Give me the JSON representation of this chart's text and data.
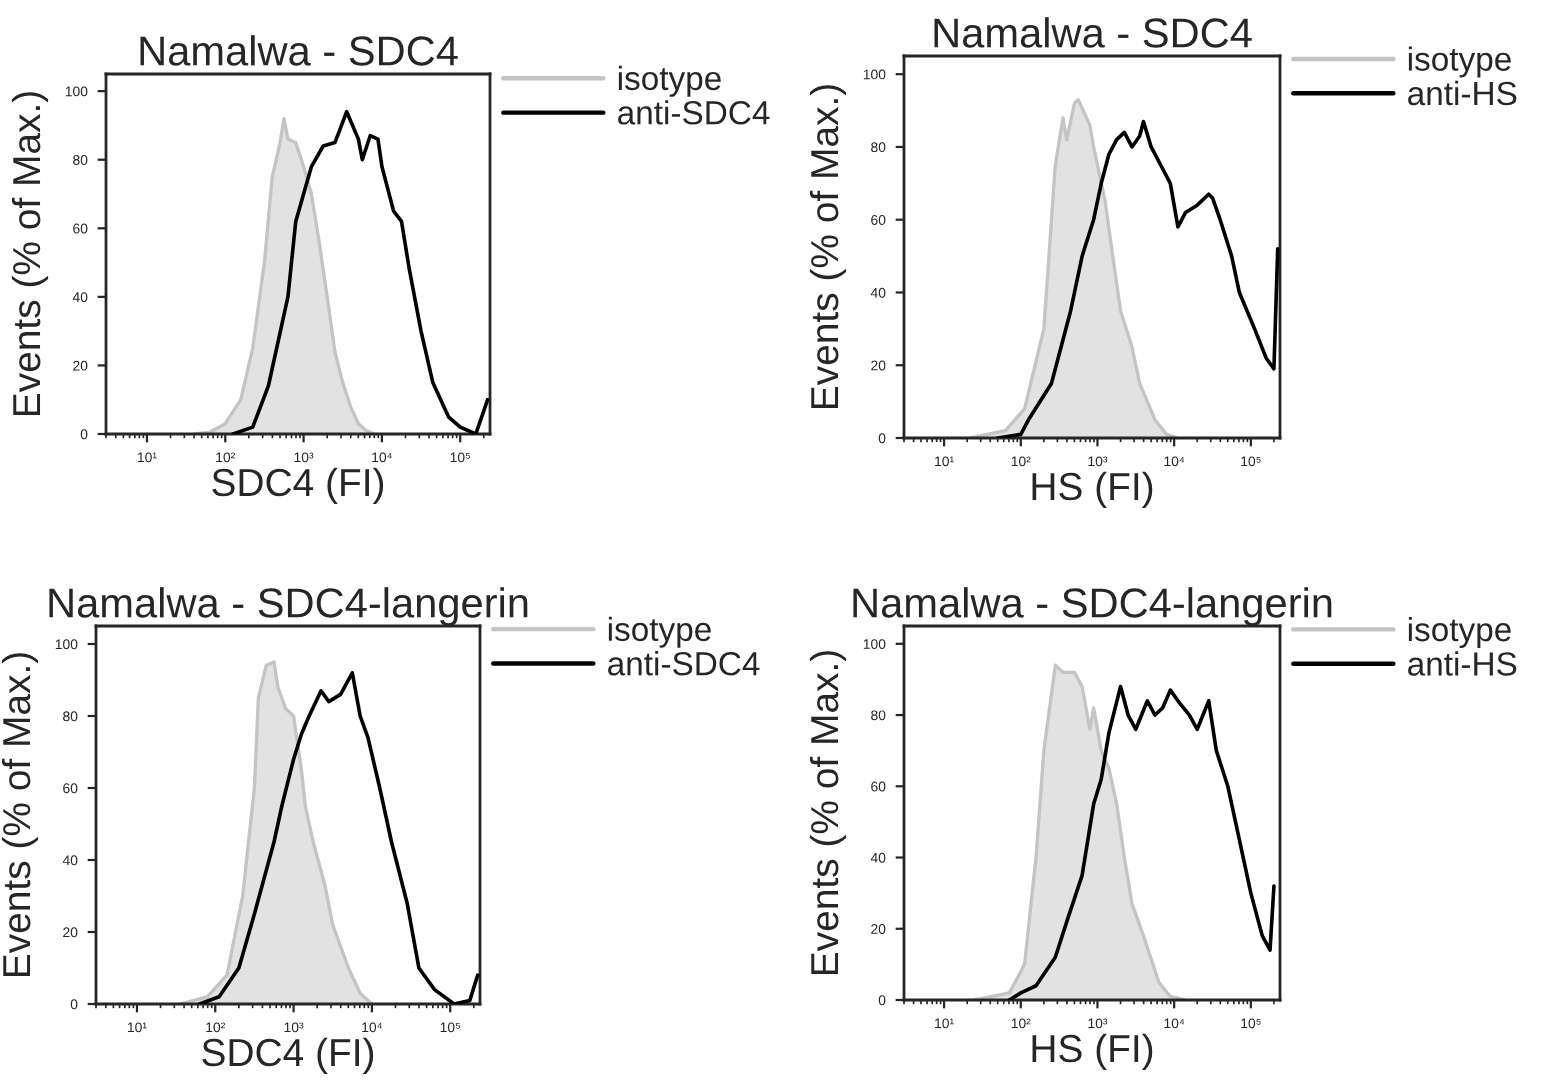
{
  "chart_data": [
    {
      "type": "area",
      "title": "Namalwa - SDC4",
      "xlabel": "SDC4 (FI)",
      "ylabel": "Events (% of Max.)",
      "log": "x",
      "xlim": [
        3,
        240000
      ],
      "ylim": [
        0,
        105
      ],
      "xticks": [
        {
          "value": 10,
          "label": "10¹"
        },
        {
          "value": 100,
          "label": "10²"
        },
        {
          "value": 1000,
          "label": "10³"
        },
        {
          "value": 10000,
          "label": "10⁴"
        },
        {
          "value": 100000,
          "label": "10⁵"
        }
      ],
      "yticks": [
        0,
        20,
        40,
        60,
        80,
        100
      ],
      "legend": "right",
      "grid": false,
      "series": [
        {
          "name": "isotype",
          "color": "#c4c4c4",
          "x": [
            40,
            63,
            100,
            158,
            224,
            316,
            398,
            447,
            501,
            562,
            631,
            794,
            1000,
            1260,
            1580,
            2000,
            2510,
            3160,
            3980,
            5010,
            6310,
            7940
          ],
          "values": [
            0,
            0.5,
            3,
            10,
            25,
            50,
            75,
            80,
            85,
            92,
            86,
            85,
            78,
            70,
            56,
            40,
            24,
            15,
            8,
            3,
            1,
            0
          ]
        },
        {
          "name": "anti-SDC4",
          "type": "line",
          "color": "#000000",
          "x": [
            126,
            224,
            355,
            631,
            794,
            1000,
            1260,
            1780,
            2510,
            2820,
            3550,
            5010,
            5620,
            7080,
            8910,
            10000,
            14100,
            17800,
            22400,
            31600,
            44700,
            70800,
            100000,
            158000,
            224000
          ],
          "values": [
            0,
            2,
            14,
            40,
            62,
            70,
            78,
            84,
            85,
            88,
            94,
            86,
            80,
            87,
            86,
            78,
            65,
            62,
            48,
            30,
            15,
            5,
            2,
            0,
            10
          ]
        }
      ]
    },
    {
      "type": "area",
      "title": "Namalwa - SDC4",
      "xlabel": "HS (FI)",
      "ylabel": "Events (% of Max.)",
      "log": "x",
      "xlim": [
        3,
        240000
      ],
      "ylim": [
        0,
        105
      ],
      "xticks": [
        {
          "value": 10,
          "label": "10¹"
        },
        {
          "value": 100,
          "label": "10²"
        },
        {
          "value": 1000,
          "label": "10³"
        },
        {
          "value": 10000,
          "label": "10⁴"
        },
        {
          "value": 100000,
          "label": "10⁵"
        }
      ],
      "yticks": [
        0,
        20,
        40,
        60,
        80,
        100
      ],
      "legend": "right",
      "grid": false,
      "series": [
        {
          "name": "isotype",
          "color": "#c4c4c4",
          "x": [
            22,
            63,
            112,
            200,
            282,
            355,
            398,
            501,
            562,
            794,
            891,
            1260,
            1580,
            2000,
            2820,
            3550,
            5620,
            7940,
            11200
          ],
          "values": [
            0,
            2,
            8,
            30,
            75,
            88,
            82,
            92,
            93,
            86,
            80,
            65,
            50,
            35,
            25,
            15,
            5,
            1,
            0
          ]
        },
        {
          "name": "anti-HS",
          "type": "line",
          "color": "#000000",
          "x": [
            50,
            100,
            126,
            251,
            447,
            631,
            891,
            1120,
            1410,
            1780,
            2240,
            2820,
            3550,
            3980,
            5010,
            7080,
            8910,
            11200,
            14100,
            20000,
            28200,
            31600,
            39800,
            56200,
            70800,
            112000,
            158000,
            200000,
            224000
          ],
          "values": [
            0,
            1,
            5,
            15,
            35,
            50,
            60,
            70,
            78,
            82,
            84,
            80,
            83,
            87,
            80,
            74,
            70,
            58,
            62,
            64,
            67,
            66,
            60,
            50,
            40,
            30,
            22,
            19,
            52
          ]
        }
      ]
    },
    {
      "type": "area",
      "title": "Namalwa - SDC4-langerin",
      "xlabel": "SDC4 (FI)",
      "ylabel": "Events (% of Max.)",
      "log": "x",
      "xlim": [
        3,
        240000
      ],
      "ylim": [
        0,
        105
      ],
      "xticks": [
        {
          "value": 10,
          "label": "10¹"
        },
        {
          "value": 100,
          "label": "10²"
        },
        {
          "value": 1000,
          "label": "10³"
        },
        {
          "value": 10000,
          "label": "10⁴"
        },
        {
          "value": 100000,
          "label": "10⁵"
        }
      ],
      "yticks": [
        0,
        20,
        40,
        60,
        80,
        100
      ],
      "legend": "right",
      "grid": false,
      "series": [
        {
          "name": "isotype",
          "color": "#c4c4c4",
          "x": [
            35,
            79,
            141,
            224,
            316,
            355,
            447,
            562,
            631,
            794,
            1000,
            1260,
            1410,
            1780,
            2510,
            3160,
            5010,
            7080,
            10000
          ],
          "values": [
            0,
            2,
            8,
            30,
            60,
            85,
            94,
            95,
            88,
            82,
            80,
            65,
            55,
            45,
            33,
            22,
            10,
            3,
            0
          ]
        },
        {
          "name": "anti-SDC4",
          "type": "line",
          "color": "#000000",
          "x": [
            63,
            112,
            200,
            316,
            562,
            708,
            1000,
            1260,
            1580,
            2240,
            2820,
            3980,
            5620,
            7080,
            8910,
            12600,
            17800,
            28200,
            39800,
            63100,
            112000,
            178000,
            224000
          ],
          "values": [
            0,
            2,
            10,
            25,
            45,
            55,
            68,
            75,
            80,
            87,
            84,
            86,
            92,
            80,
            74,
            60,
            45,
            28,
            10,
            4,
            0,
            1,
            8
          ]
        }
      ]
    },
    {
      "type": "area",
      "title": "Namalwa - SDC4-langerin",
      "xlabel": "HS (FI)",
      "ylabel": "Events (% of Max.)",
      "log": "x",
      "xlim": [
        3,
        240000
      ],
      "ylim": [
        0,
        105
      ],
      "xticks": [
        {
          "value": 10,
          "label": "10¹"
        },
        {
          "value": 100,
          "label": "10²"
        },
        {
          "value": 1000,
          "label": "10³"
        },
        {
          "value": 10000,
          "label": "10⁴"
        },
        {
          "value": 100000,
          "label": "10⁵"
        }
      ],
      "yticks": [
        0,
        20,
        40,
        60,
        80,
        100
      ],
      "legend": "right",
      "grid": false,
      "series": [
        {
          "name": "isotype",
          "color": "#c4c4c4",
          "x": [
            25,
            71,
            112,
            158,
            200,
            282,
            355,
            501,
            631,
            794,
            891,
            1120,
            1410,
            1780,
            2240,
            2820,
            3980,
            6310,
            8910,
            14100
          ],
          "values": [
            0,
            2,
            10,
            40,
            70,
            94,
            92,
            92,
            88,
            76,
            82,
            70,
            65,
            55,
            40,
            27,
            18,
            5,
            1,
            0
          ]
        },
        {
          "name": "anti-HS",
          "type": "line",
          "color": "#000000",
          "x": [
            71,
            100,
            158,
            282,
            398,
            631,
            891,
            1120,
            1410,
            2000,
            2510,
            3160,
            4470,
            5620,
            7080,
            8910,
            11200,
            15800,
            20000,
            28200,
            35500,
            50100,
            70800,
            100000,
            141000,
            178000,
            200000
          ],
          "values": [
            0,
            2,
            4,
            12,
            22,
            35,
            55,
            62,
            75,
            88,
            80,
            76,
            84,
            80,
            82,
            87,
            84,
            80,
            76,
            84,
            70,
            60,
            45,
            30,
            18,
            14,
            32
          ]
        }
      ]
    }
  ]
}
